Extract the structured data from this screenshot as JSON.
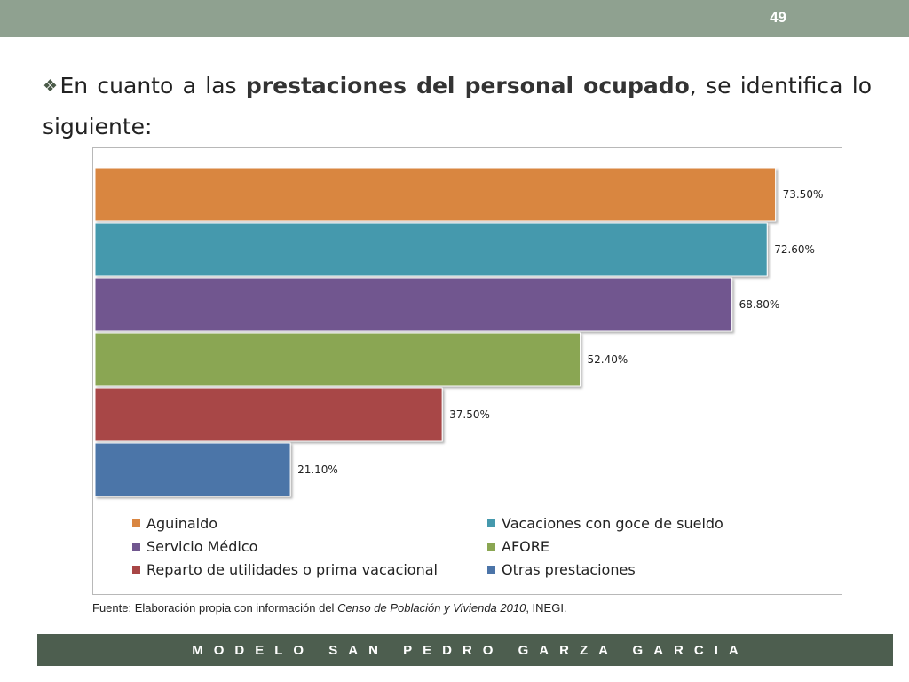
{
  "slide": {
    "number": "49",
    "intro": {
      "bullet": "❖",
      "before": "En cuanto a las ",
      "emphasis": "prestaciones del personal ocupado",
      "after": ", se identifica lo siguiente:"
    },
    "source": {
      "prefix": "Fuente: Elaboración propia con información del ",
      "italic": "Censo de Población y Vivienda  2010",
      "suffix": ", INEGI."
    },
    "footer": "MODELO SAN PEDRO GARZA GARCIA"
  },
  "chart_data": {
    "type": "bar",
    "orientation": "horizontal",
    "categories": [
      "Aguinaldo",
      "Vacaciones con goce de sueldo",
      "Servicio Médico",
      "AFORE",
      "Reparto de utilidades o prima vacacional",
      "Otras prestaciones"
    ],
    "values": [
      73.5,
      72.6,
      68.8,
      52.4,
      37.5,
      21.1
    ],
    "labels": [
      "73.50%",
      "72.60%",
      "68.80%",
      "52.40%",
      "37.50%",
      "21.10%"
    ],
    "colors": [
      "#d98641",
      "#4599ad",
      "#71578f",
      "#8aa652",
      "#a84646",
      "#4b74a8"
    ],
    "xlim": [
      0,
      100
    ],
    "unit": "%",
    "legend_position": "bottom"
  }
}
